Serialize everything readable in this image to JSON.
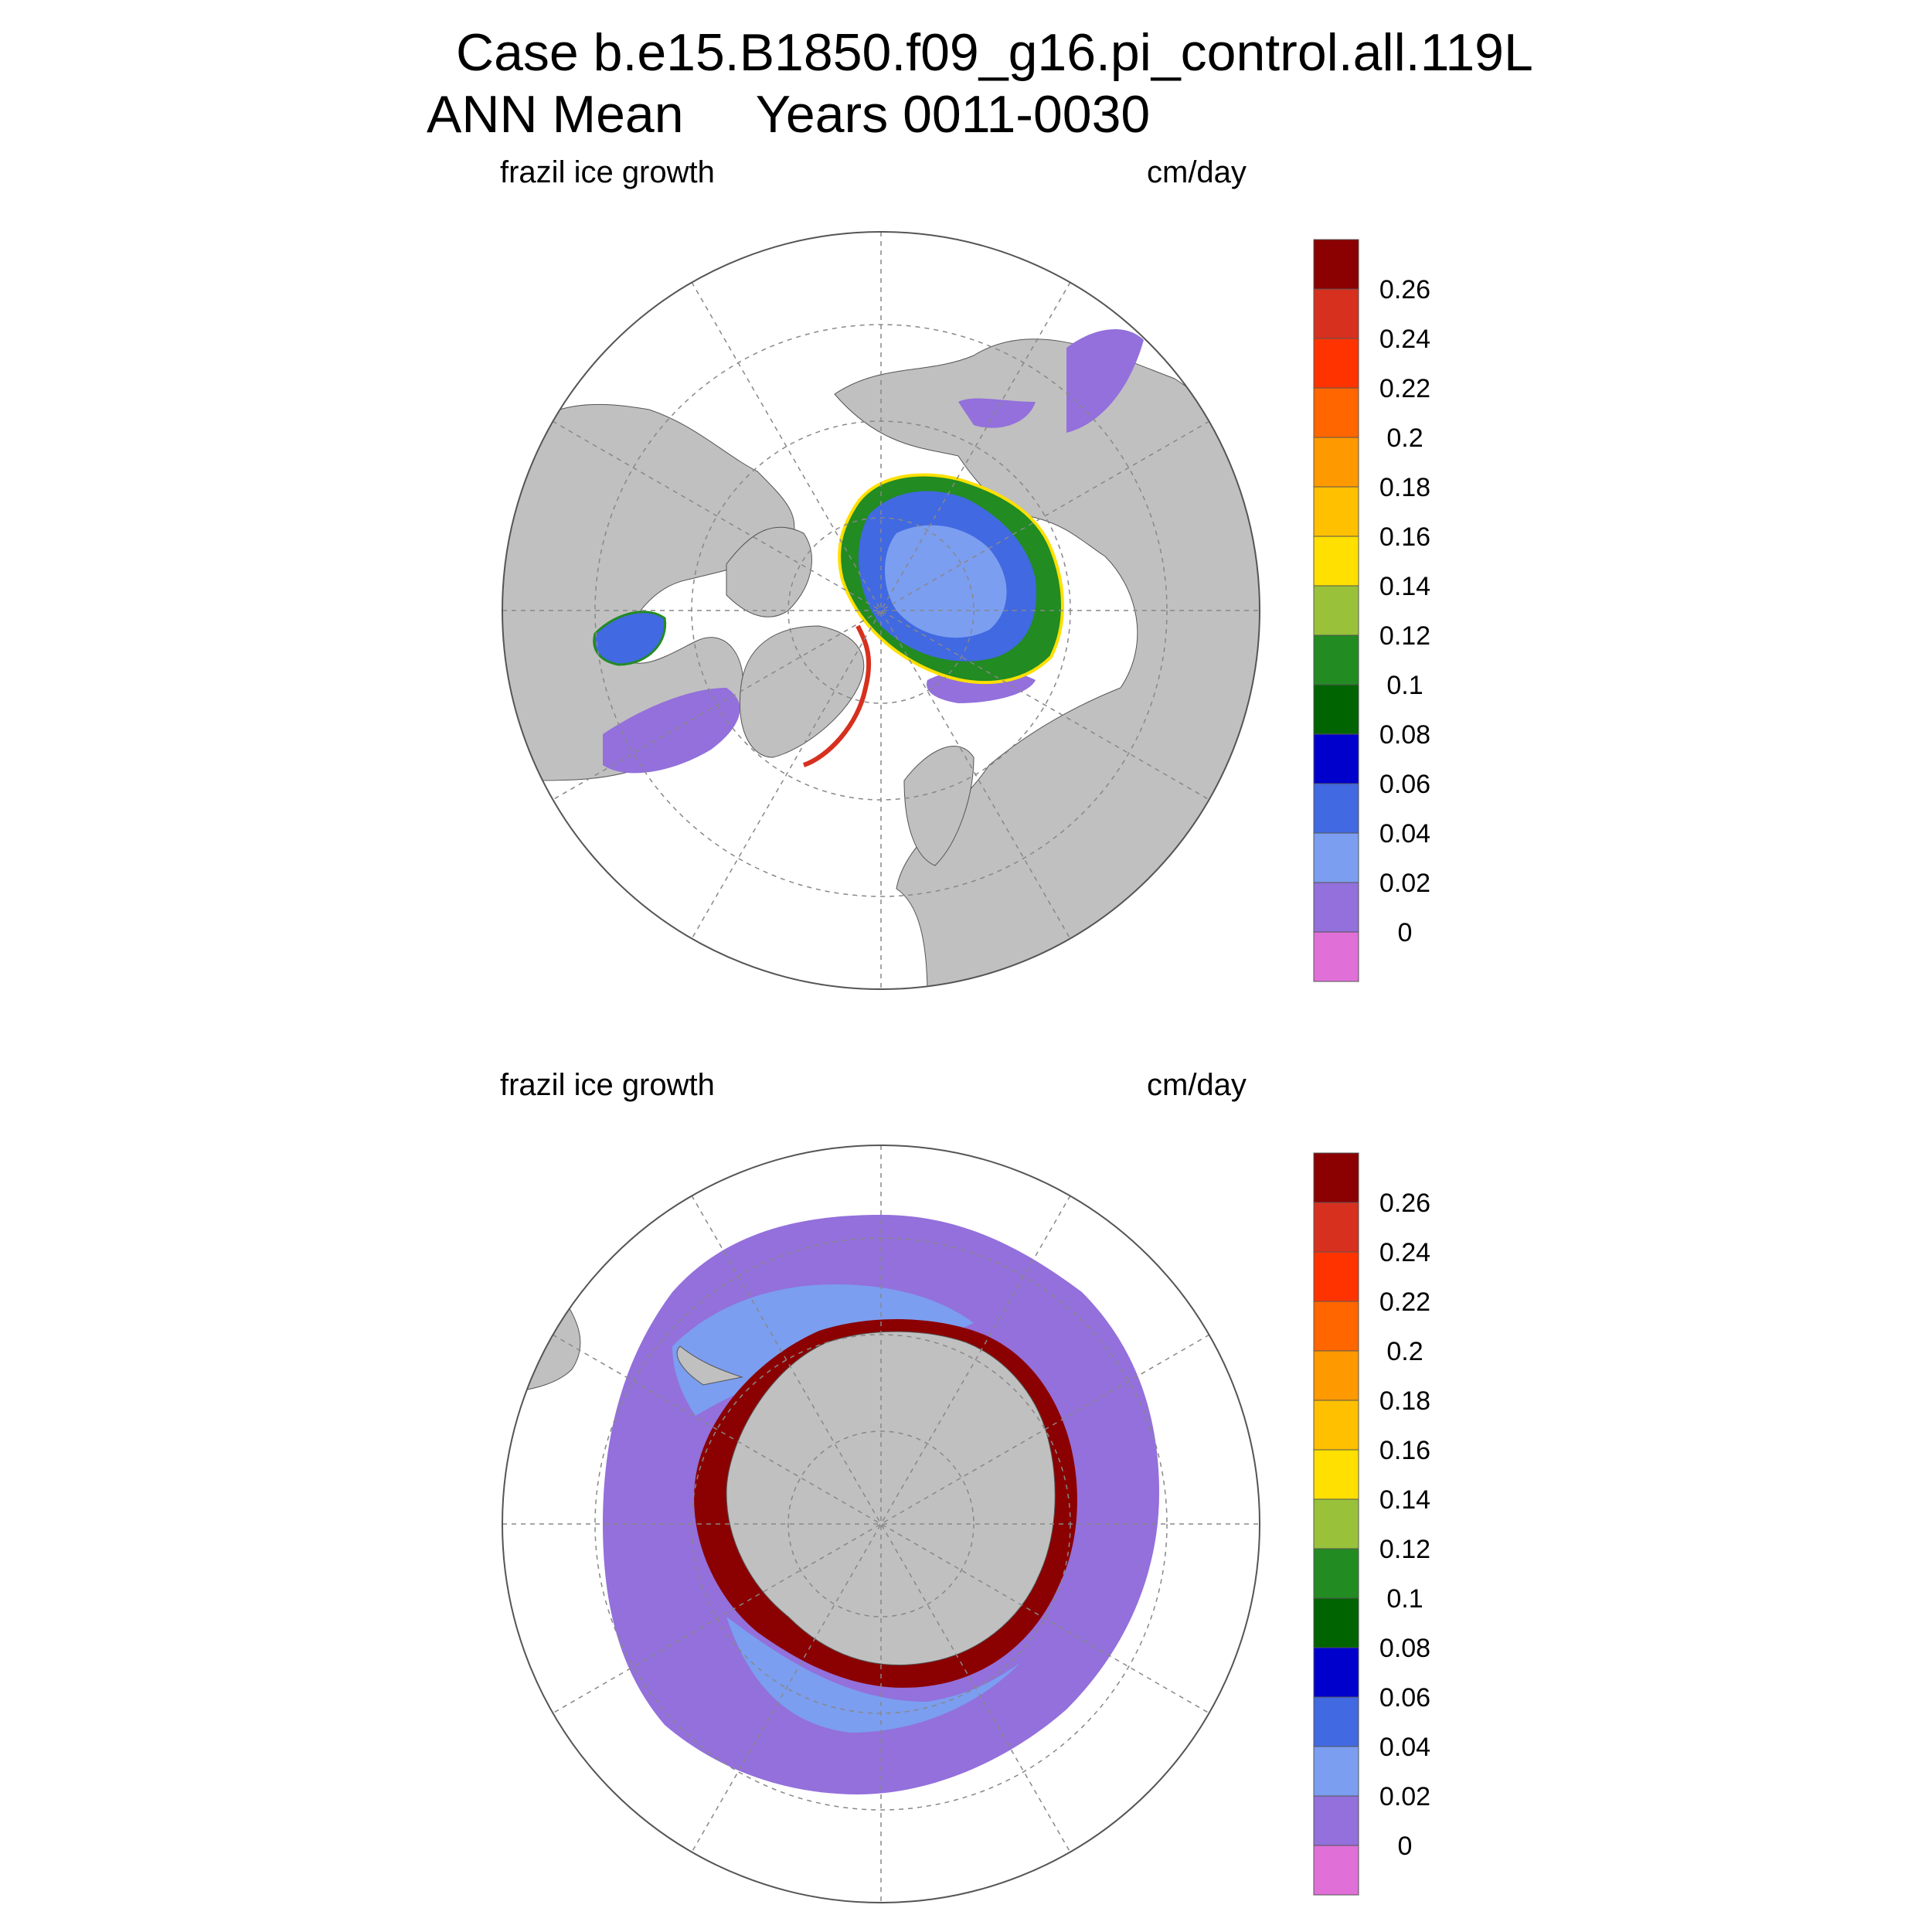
{
  "figure": {
    "title_line1": "Case b.e15.B1850.f09_g16.pi_control.all.119L",
    "title_line2": "ANN Mean     Years 0011-0030"
  },
  "panels": {
    "north": {
      "variable_label": "frazil ice growth",
      "units_label": "cm/day",
      "hemisphere": "Arctic (north polar stereographic)"
    },
    "south": {
      "variable_label": "frazil ice growth",
      "units_label": "cm/day",
      "hemisphere": "Antarctic (south polar stereographic)"
    }
  },
  "colorbar": {
    "labels": [
      "0.26",
      "0.24",
      "0.22",
      "0.2",
      "0.18",
      "0.16",
      "0.14",
      "0.12",
      "0.1",
      "0.08",
      "0.06",
      "0.04",
      "0.02",
      "0"
    ],
    "colors_top_to_bottom": [
      "#8b0000",
      "#d7301f",
      "#ff3300",
      "#ff6600",
      "#ff9900",
      "#ffc000",
      "#ffe000",
      "#99c23a",
      "#228b22",
      "#006400",
      "#0000cd",
      "#4169e1",
      "#7b9ef0",
      "#9370db",
      "#e070d8"
    ]
  },
  "map_colors": {
    "land": "#c0c0c0",
    "ocean_no_data": "#ffffff",
    "graticule": "#888888",
    "level_0_to_0_02": "#9370db",
    "level_0_02_to_0_04": "#7b9ef0",
    "level_0_04_to_0_06": "#4169e1",
    "level_above_0_26": "#8b0000"
  }
}
